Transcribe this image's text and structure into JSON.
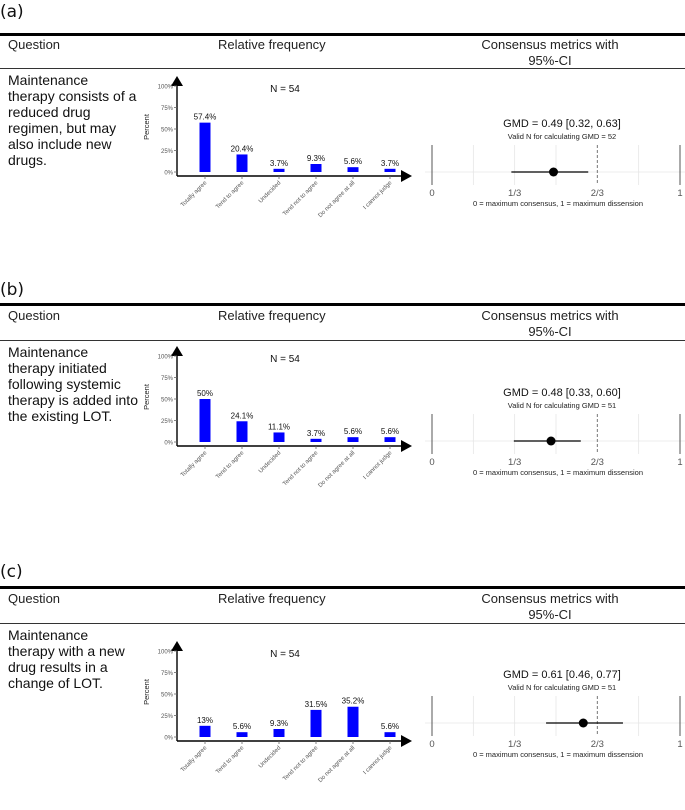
{
  "headers": {
    "question": "Question",
    "relative_frequency": "Relative frequency",
    "consensus_line1": "Consensus metrics with",
    "consensus_line2": "95%-CI"
  },
  "panels": [
    {
      "label": "(a)",
      "question": "Maintenance therapy consists of a reduced drug regimen, but may also include new drugs.",
      "n_label": "N = 54",
      "gmd_label": "GMD = 0.49 [0.32, 0.63]",
      "valid_n_label": "Valid N for calculating GMD = 52"
    },
    {
      "label": "(b)",
      "question": "Maintenance therapy initiated following systemic therapy is added into the existing LOT.",
      "n_label": "N = 54",
      "gmd_label": "GMD = 0.48 [0.33, 0.60]",
      "valid_n_label": "Valid N for calculating GMD = 51"
    },
    {
      "label": "(c)",
      "question": "Maintenance therapy with a new drug results in a change of LOT.",
      "n_label": "N = 54",
      "gmd_label": "GMD = 0.61 [0.46, 0.77]",
      "valid_n_label": "Valid N for calculating GMD = 51"
    }
  ],
  "colors": {
    "bar": "#0000ff",
    "axis": "#000000",
    "grid": "#e6e6e6"
  },
  "chart_data": [
    {
      "type": "bar",
      "title": "N = 54",
      "ylabel": "Percent",
      "ylim": [
        0,
        100
      ],
      "yticks": [
        "0%",
        "25%",
        "50%",
        "75%",
        "100%"
      ],
      "categories": [
        "Totally agree",
        "Tend to agree",
        "Undecided",
        "Tend not to agree",
        "Do not agree at all",
        "I cannot judge"
      ],
      "values": [
        57.4,
        20.4,
        3.7,
        9.3,
        5.6,
        3.7
      ],
      "labels": [
        "57.4%",
        "20.4%",
        "3.7%",
        "9.3%",
        "5.6%",
        "3.7%"
      ]
    },
    {
      "type": "scatter",
      "title": "GMD = 0.49 [0.32, 0.63]",
      "subtitle": "Valid N for calculating GMD = 52",
      "xlabel": "0 = maximum consensus, 1 = maximum dissension",
      "xlim": [
        0,
        1
      ],
      "xticks": [
        "0",
        "1/3",
        "2/3",
        "1"
      ],
      "estimate": 0.49,
      "ci": [
        0.32,
        0.63
      ],
      "reference_line": 0.6667
    },
    {
      "type": "bar",
      "title": "N = 54",
      "ylabel": "Percent",
      "ylim": [
        0,
        100
      ],
      "yticks": [
        "0%",
        "25%",
        "50%",
        "75%",
        "100%"
      ],
      "categories": [
        "Totally agree",
        "Tend to agree",
        "Undecided",
        "Tend not to agree",
        "Do not agree at all",
        "I cannot judge"
      ],
      "values": [
        50,
        24.1,
        11.1,
        3.7,
        5.6,
        5.6
      ],
      "labels": [
        "50%",
        "24.1%",
        "11.1%",
        "3.7%",
        "5.6%",
        "5.6%"
      ]
    },
    {
      "type": "scatter",
      "title": "GMD = 0.48 [0.33, 0.60]",
      "subtitle": "Valid N for calculating GMD = 51",
      "xlabel": "0 = maximum consensus, 1 = maximum dissension",
      "xlim": [
        0,
        1
      ],
      "xticks": [
        "0",
        "1/3",
        "2/3",
        "1"
      ],
      "estimate": 0.48,
      "ci": [
        0.33,
        0.6
      ],
      "reference_line": 0.6667
    },
    {
      "type": "bar",
      "title": "N = 54",
      "ylabel": "Percent",
      "ylim": [
        0,
        100
      ],
      "yticks": [
        "0%",
        "25%",
        "50%",
        "75%",
        "100%"
      ],
      "categories": [
        "Totally agree",
        "Tend to agree",
        "Undecided",
        "Tend not to agree",
        "Do not agree at all",
        "I cannot judge"
      ],
      "values": [
        13,
        5.6,
        9.3,
        31.5,
        35.2,
        5.6
      ],
      "labels": [
        "13%",
        "5.6%",
        "9.3%",
        "31.5%",
        "35.2%",
        "5.6%"
      ]
    },
    {
      "type": "scatter",
      "title": "GMD = 0.61 [0.46, 0.77]",
      "subtitle": "Valid N for calculating GMD = 51",
      "xlabel": "0 = maximum consensus, 1 = maximum dissension",
      "xlim": [
        0,
        1
      ],
      "xticks": [
        "0",
        "1/3",
        "2/3",
        "1"
      ],
      "estimate": 0.61,
      "ci": [
        0.46,
        0.77
      ],
      "reference_line": 0.6667
    }
  ]
}
